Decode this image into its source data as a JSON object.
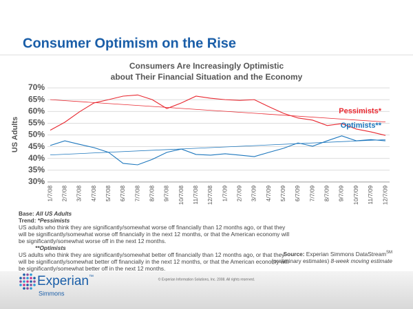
{
  "header": {
    "title": "Consumer Optimism on the Rise"
  },
  "chart_data": {
    "type": "line",
    "title": [
      "Consumers Are Increasingly Optimistic",
      "about Their Financial Situation and the Economy"
    ],
    "y_label": "US Adults",
    "categories": [
      "1/7/08",
      "2/7/08",
      "3/7/08",
      "4/7/08",
      "5/7/08",
      "6/7/08",
      "7/7/08",
      "8/7/08",
      "9/7/08",
      "10/7/08",
      "11/7/08",
      "12/7/08",
      "1/7/09",
      "2/7/09",
      "3/7/09",
      "4/7/09",
      "5/7/09",
      "6/7/09",
      "7/7/09",
      "8/7/09",
      "9/7/09",
      "10/7/09",
      "11/7/09",
      "12/7/09"
    ],
    "series": [
      {
        "name": "Pessimists*",
        "color": "#e8262e",
        "trend_color": "#e8262e",
        "values": [
          52,
          55.4,
          59.8,
          63.6,
          65,
          66.5,
          67,
          65,
          61.2,
          63.6,
          66.5,
          65.6,
          65,
          64.7,
          65,
          62,
          59.2,
          57.2,
          56.3,
          54,
          54.8,
          52.5,
          51.3,
          49.8
        ],
        "trend": [
          65,
          55.5
        ]
      },
      {
        "name": "Optimists**",
        "color": "#1a75bc",
        "trend_color": "#1a75bc",
        "values": [
          45.5,
          47.5,
          46,
          44.6,
          42.6,
          37.9,
          37.3,
          39.6,
          42.6,
          44,
          41.7,
          41.4,
          42,
          41.4,
          40.8,
          42.6,
          44.3,
          46.6,
          45.2,
          47.5,
          49.6,
          47.5,
          48,
          47.5
        ],
        "trend": [
          41.5,
          48
        ]
      }
    ],
    "ylim": [
      30,
      70
    ],
    "yticks": [
      {
        "value": 30,
        "label": "30%"
      },
      {
        "value": 35,
        "label": "35%"
      },
      {
        "value": 40,
        "label": "40%"
      },
      {
        "value": 45,
        "label": "45%"
      },
      {
        "value": 50,
        "label": "50%"
      },
      {
        "value": 55,
        "label": "55%"
      },
      {
        "value": 60,
        "label": "60%"
      },
      {
        "value": 65,
        "label": "65%"
      },
      {
        "value": 70,
        "label": "70%"
      }
    ],
    "grid": true
  },
  "notes": {
    "base_label": "Base:",
    "base_value": "All US Adults",
    "trend_label": "Trend:",
    "pess_label": "*Pessimists",
    "pess_text": "US adults who think they are significantly/somewhat worse off financially than 12 months ago, or that they will be significantly/somewhat worse off financially in the next 12 months, or that the American economy will be significantly/somewhat worse off in the next 12 months.",
    "opt_label": "**Optimists",
    "opt_text": "US adults who think they are significantly/somewhat better off financially than 12 months ago, or that they will be significantly/somewhat better off financially in the next 12 months, or that the American economy will be significantly/somewhat better off in the next 12 months."
  },
  "source": {
    "label": "Source:",
    "text": "Experian Simmons DataStream",
    "mark": "SM",
    "prelim": "(preliminary estimates)",
    "method": "8-week moving estimate"
  },
  "footer": {
    "brand": "Experian",
    "tm": "™",
    "sub": "Simmons",
    "copyright": "© Experian Information Solutions, Inc. 2008.  All rights reserved."
  }
}
